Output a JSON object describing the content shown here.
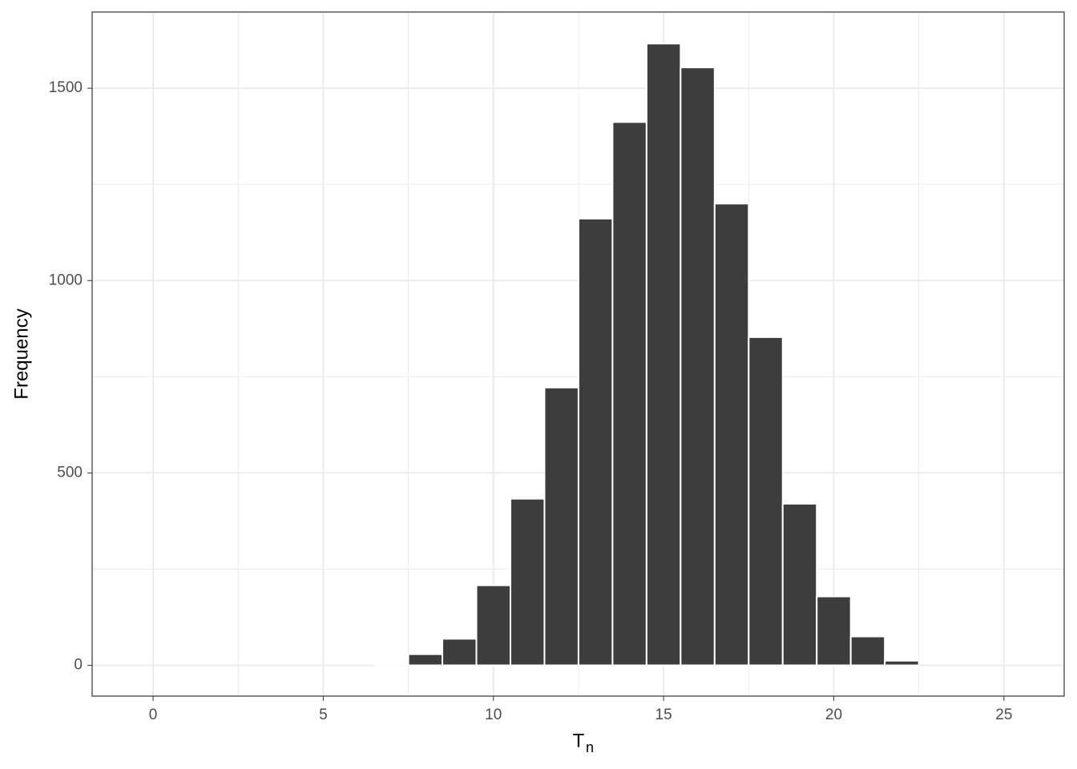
{
  "chart_data": {
    "type": "histogram",
    "xlabel": "T",
    "xlabel_sub": "n",
    "ylabel": "Frequency",
    "bins": [
      -0.5,
      0.5,
      1.5,
      2.5,
      3.5,
      4.5,
      5.5,
      6.5,
      7.5,
      8.5,
      9.5,
      10.5,
      11.5,
      12.5,
      13.5,
      14.5,
      15.5,
      16.5,
      17.5,
      18.5,
      19.5,
      20.5,
      21.5,
      22.5,
      23.5,
      24.5,
      25.5
    ],
    "values": [
      0,
      0,
      0,
      0,
      0,
      0,
      0,
      3,
      29,
      69,
      208,
      433,
      722,
      1161,
      1412,
      1616,
      1554,
      1200,
      853,
      420,
      179,
      75,
      12,
      0,
      0,
      0
    ],
    "color": "#3d3d3d",
    "xlim": [
      -1.79,
      26.77
    ],
    "xticks": [
      0,
      5,
      10,
      15,
      20,
      25
    ],
    "ylim": [
      -80,
      1698
    ],
    "yticks": [
      0,
      500,
      1000,
      1500
    ],
    "grid": true
  }
}
